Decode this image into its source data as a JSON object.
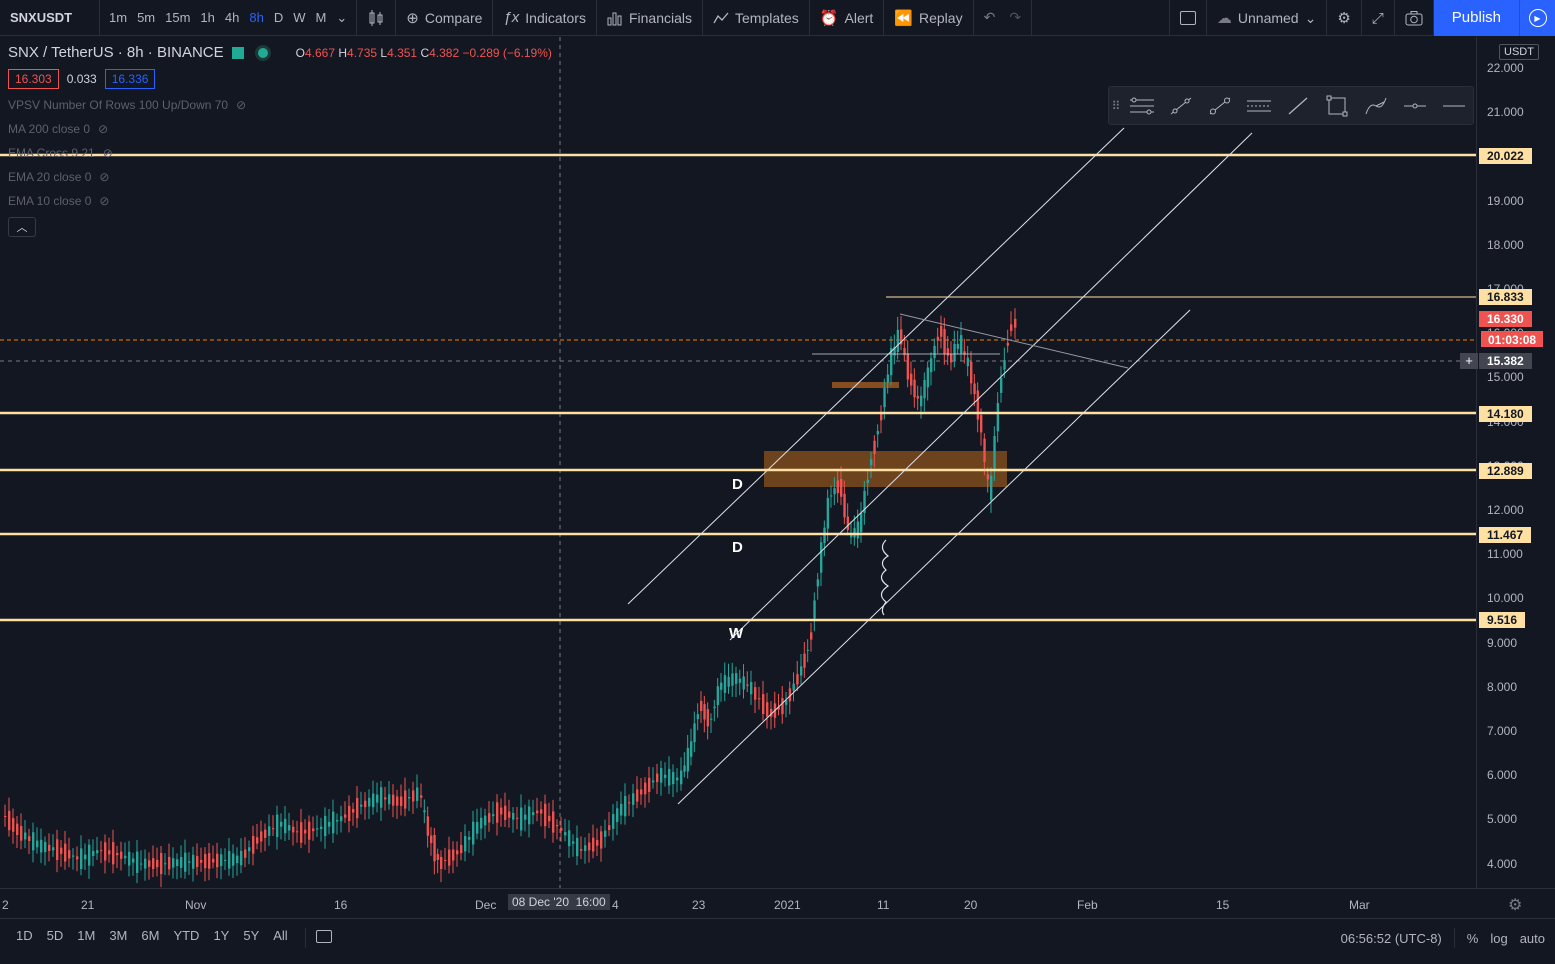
{
  "topbar": {
    "symbol": "SNXUSDT",
    "intervals": [
      "1m",
      "5m",
      "15m",
      "1h",
      "4h",
      "8h",
      "D",
      "W",
      "M"
    ],
    "active_interval": "8h",
    "compare_label": "Compare",
    "indicators_label": "Indicators",
    "financials_label": "Financials",
    "templates_label": "Templates",
    "alert_label": "Alert",
    "replay_label": "Replay",
    "layout_name": "Unnamed",
    "publish_label": "Publish"
  },
  "legend": {
    "title": "SNX / TetherUS · 8h · BINANCE",
    "open_key": "O",
    "open": "4.667",
    "high_key": "H",
    "high": "4.735",
    "low_key": "L",
    "low": "4.351",
    "close_key": "C",
    "close": "4.382",
    "change": "−0.289 (−6.19%)",
    "bid": "16.303",
    "spread": "0.033",
    "ask": "16.336",
    "indicators": [
      "VPSV Number Of Rows 100 Up/Down 70",
      "MA 200 close 0",
      "EMA Cross 9 21",
      "EMA 20 close 0",
      "EMA 10 close 0"
    ]
  },
  "price_axis": {
    "currency": "USDT",
    "ticks": [
      "22.000",
      "21.000",
      "20.000",
      "19.000",
      "18.000",
      "17.000",
      "16.000",
      "15.000",
      "14.000",
      "13.000",
      "12.000",
      "11.000",
      "10.000",
      "9.000",
      "8.000",
      "7.000",
      "6.000",
      "5.000",
      "4.000"
    ],
    "labels": {
      "level_20022": "20.022",
      "level_16833": "16.833",
      "last_price": "16.330",
      "countdown": "01:03:08",
      "crosshair": "15.382",
      "level_14180": "14.180",
      "level_12889": "12.889",
      "level_11467": "11.467",
      "level_9516": "9.516"
    }
  },
  "time_axis": {
    "ticks": [
      "2",
      "21",
      "Nov",
      "16",
      "Dec",
      "4",
      "23",
      "2021",
      "11",
      "20",
      "Feb",
      "15",
      "Mar"
    ],
    "crosshair": "08 Dec '20  16:00"
  },
  "annotations": {
    "d1": "D",
    "d2": "D",
    "w": "W"
  },
  "bottombar": {
    "ranges": [
      "1D",
      "5D",
      "1M",
      "3M",
      "6M",
      "YTD",
      "1Y",
      "5Y",
      "All"
    ],
    "clock": "06:56:52 (UTC-8)",
    "percent": "%",
    "log": "log",
    "auto": "auto"
  },
  "colors": {
    "background": "#131722",
    "up": "#26a69a",
    "down": "#ef5350",
    "level": "#ffe0a3",
    "accent": "#2962ff"
  }
}
